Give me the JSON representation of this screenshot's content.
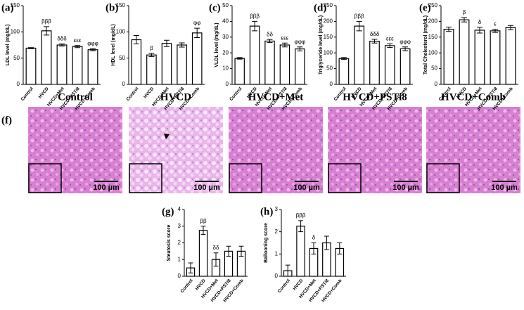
{
  "chart_data": [
    {
      "type": "bar",
      "panel_label": "(a)",
      "y_label": "LDL level (mg/dL)",
      "categories": [
        "Control",
        "HVCD",
        "HVCD+Met",
        "HVCD+PSTi8",
        "HVCD+Comb"
      ],
      "values": [
        69,
        102,
        75,
        72,
        66
      ],
      "errors": [
        1,
        8,
        2,
        2,
        2
      ],
      "annotations": [
        null,
        "βββ",
        "δδδ",
        "εεε",
        "φφφ"
      ],
      "ylim": [
        0,
        150
      ],
      "yticks": [
        0,
        50,
        100,
        150
      ],
      "color": "#ffffff"
    },
    {
      "type": "bar",
      "panel_label": "(b)",
      "y_label": "HDL level (mg/dL)",
      "categories": [
        "Control",
        "HVCD",
        "HVCD+Met",
        "HVCD+PSTi8",
        "HVCD+Comb"
      ],
      "values": [
        85,
        56,
        78,
        75,
        98
      ],
      "errors": [
        8,
        3,
        6,
        4,
        9
      ],
      "annotations": [
        null,
        "β",
        null,
        null,
        "φφ"
      ],
      "ylim": [
        0,
        150
      ],
      "yticks": [
        0,
        50,
        100,
        150
      ],
      "color": "#ffffff"
    },
    {
      "type": "bar",
      "panel_label": "(c)",
      "y_label": "VLDL level (mg/dL)",
      "categories": [
        "Control",
        "HVCD",
        "HVCD+Met",
        "HVCD+PSTi8",
        "HVCD+Comb"
      ],
      "values": [
        16.5,
        37,
        27.5,
        25,
        22.5
      ],
      "errors": [
        0.5,
        3,
        1,
        1.2,
        1.3
      ],
      "annotations": [
        null,
        "βββ",
        "δδ",
        "εεε",
        "φφφ"
      ],
      "ylim": [
        0,
        50
      ],
      "yticks": [
        0,
        10,
        20,
        30,
        40,
        50
      ],
      "color": "#ffffff"
    },
    {
      "type": "bar",
      "panel_label": "(d)",
      "y_label": "Triglyceride level (mg/dL)",
      "categories": [
        "Control",
        "HVCD",
        "HVCD+Met",
        "HVCD+PSTi8",
        "HVCD+Comb"
      ],
      "values": [
        82,
        185,
        137,
        123,
        113
      ],
      "errors": [
        3,
        15,
        6,
        6,
        6
      ],
      "annotations": [
        null,
        "βββ",
        "δδδ",
        "εεε",
        "φφφ"
      ],
      "ylim": [
        0,
        250
      ],
      "yticks": [
        0,
        50,
        100,
        150,
        200,
        250
      ],
      "color": "#ffffff"
    },
    {
      "type": "bar",
      "panel_label": "(e)",
      "y_label": "Total Cholesterol (mg/dL)",
      "categories": [
        "Control",
        "HVCD",
        "HVCD+Met",
        "HVCD+PSTi8",
        "HVCD+Comb"
      ],
      "values": [
        175,
        205,
        172,
        170,
        180
      ],
      "errors": [
        7,
        7,
        9,
        5,
        7
      ],
      "annotations": [
        null,
        "β",
        "δ",
        "ε",
        null
      ],
      "ylim": [
        0,
        250
      ],
      "yticks": [
        0,
        50,
        100,
        150,
        200,
        250
      ],
      "color": "#ffffff"
    },
    {
      "type": "bar",
      "panel_label": "(g)",
      "y_label": "Steatosis score",
      "categories": [
        "Control",
        "HVCD",
        "HVCD+Met",
        "HVCD+PSTi8",
        "HVCD+Comb"
      ],
      "values": [
        0.5,
        2.75,
        1.0,
        1.5,
        1.5
      ],
      "errors": [
        0.3,
        0.25,
        0.4,
        0.3,
        0.3
      ],
      "annotations": [
        null,
        "ββ",
        "δδ",
        null,
        null
      ],
      "ylim": [
        0,
        4
      ],
      "yticks": [
        0,
        1,
        2,
        3,
        4
      ],
      "color": "#ffffff"
    },
    {
      "type": "bar",
      "panel_label": "(h)",
      "y_label": "Ballooning score",
      "categories": [
        "Control",
        "HVCD",
        "HVCD+Met",
        "HVCD+PSTi8",
        "HVCD+Comb"
      ],
      "values": [
        0.25,
        2.25,
        1.25,
        1.5,
        1.25
      ],
      "errors": [
        0.25,
        0.25,
        0.25,
        0.3,
        0.25
      ],
      "annotations": [
        null,
        "βββ",
        "δ",
        null,
        null
      ],
      "ylim": [
        0,
        3
      ],
      "yticks": [
        0,
        1,
        2,
        3
      ],
      "color": "#ffffff"
    }
  ],
  "histology": {
    "panel_label": "(f)",
    "titles": [
      "Control",
      "HVCD",
      "HVCD+Met",
      "HVCD+PSTi8",
      "HVCD+Comb"
    ],
    "scale_bar": "100 µm"
  }
}
